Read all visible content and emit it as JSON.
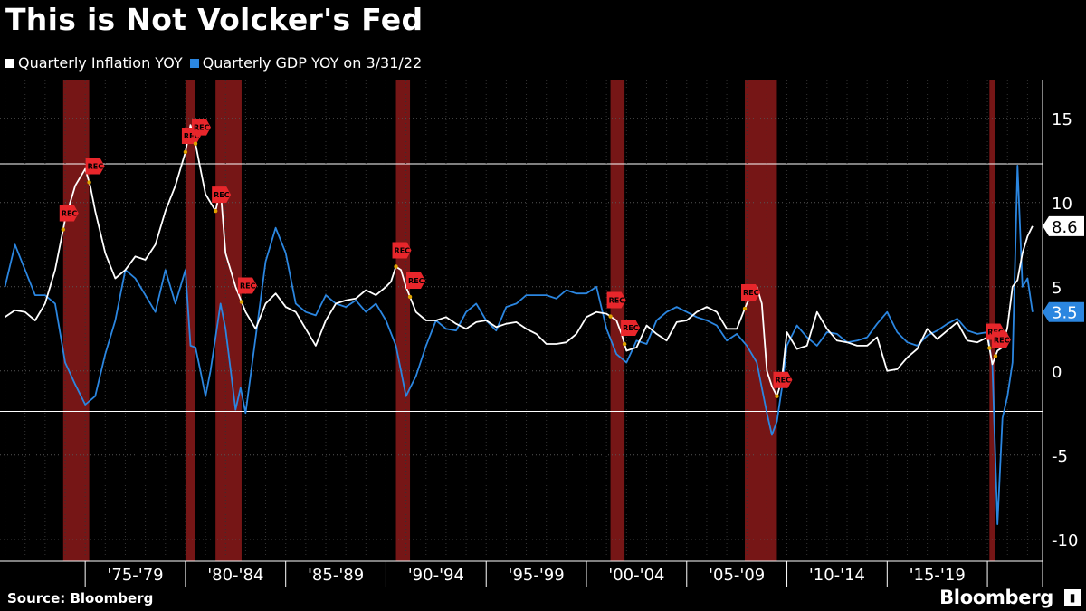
{
  "page": {
    "title": "This is Not Volcker's Fed",
    "source": "Source: Bloomberg",
    "brand": "Bloomberg",
    "brand_icon": "bloomberg-terminal-icon"
  },
  "colors": {
    "background": "#000000",
    "inflation": "#ffffff",
    "gdp": "#2b86e0",
    "recession": "#8b1a1a",
    "rec_flag": "#e8262b",
    "grid": "#555555",
    "marker": "#e0a400"
  },
  "chart_data": {
    "type": "line",
    "title": "This is Not Volcker's Fed",
    "xlabel": "",
    "ylabel": "",
    "ylim": [
      -11.3,
      17.3
    ],
    "xlim": [
      1970.75,
      2022.75
    ],
    "y_ticks": [
      15,
      10,
      5,
      0,
      -5,
      -10
    ],
    "x_period_labels": [
      "'75-'79",
      "'80-'84",
      "'85-'89",
      "'90-'94",
      "'95-'99",
      "'00-'04",
      "'05-'09",
      "'10-'14",
      "'15-'19"
    ],
    "reference_lines": [
      12.3,
      -2.4
    ],
    "last_value_labels": [
      {
        "series": "Quarterly Inflation YOY",
        "label": "8.6"
      },
      {
        "series": "Quarterly GDP YOY on 3/31/22",
        "label": "3.5"
      }
    ],
    "recession_label": "REC",
    "recessions": [
      [
        1973.9,
        1975.2
      ],
      [
        1980.0,
        1980.5
      ],
      [
        1981.5,
        1982.8
      ],
      [
        1990.5,
        1991.2
      ],
      [
        2001.2,
        2001.9
      ],
      [
        2007.9,
        2009.5
      ],
      [
        2020.1,
        2020.4
      ]
    ],
    "series": [
      {
        "name": "Quarterly Inflation YOY",
        "points": [
          [
            1971.0,
            3.2
          ],
          [
            1971.5,
            3.6
          ],
          [
            1972.0,
            3.5
          ],
          [
            1972.5,
            3.0
          ],
          [
            1973.0,
            4.0
          ],
          [
            1973.5,
            6.0
          ],
          [
            1974.0,
            9.0
          ],
          [
            1974.5,
            11.0
          ],
          [
            1975.0,
            12.0
          ],
          [
            1975.25,
            11.0
          ],
          [
            1975.5,
            9.5
          ],
          [
            1976.0,
            7.0
          ],
          [
            1976.5,
            5.5
          ],
          [
            1977.0,
            6.0
          ],
          [
            1977.5,
            6.8
          ],
          [
            1978.0,
            6.6
          ],
          [
            1978.5,
            7.5
          ],
          [
            1979.0,
            9.5
          ],
          [
            1979.5,
            11.0
          ],
          [
            1980.0,
            13.0
          ],
          [
            1980.25,
            14.6
          ],
          [
            1980.5,
            13.5
          ],
          [
            1980.75,
            12.0
          ],
          [
            1981.0,
            10.5
          ],
          [
            1981.5,
            9.5
          ],
          [
            1981.75,
            10.8
          ],
          [
            1982.0,
            7.0
          ],
          [
            1982.5,
            5.0
          ],
          [
            1983.0,
            3.5
          ],
          [
            1983.5,
            2.5
          ],
          [
            1984.0,
            4.0
          ],
          [
            1984.5,
            4.6
          ],
          [
            1985.0,
            3.8
          ],
          [
            1985.5,
            3.5
          ],
          [
            1986.0,
            2.5
          ],
          [
            1986.5,
            1.5
          ],
          [
            1987.0,
            3.0
          ],
          [
            1987.5,
            4.0
          ],
          [
            1988.0,
            4.2
          ],
          [
            1988.5,
            4.3
          ],
          [
            1989.0,
            4.8
          ],
          [
            1989.5,
            4.5
          ],
          [
            1990.0,
            5.0
          ],
          [
            1990.25,
            5.3
          ],
          [
            1990.5,
            6.2
          ],
          [
            1990.75,
            6.0
          ],
          [
            1991.0,
            5.0
          ],
          [
            1991.5,
            3.5
          ],
          [
            1992.0,
            3.0
          ],
          [
            1992.5,
            3.0
          ],
          [
            1993.0,
            3.2
          ],
          [
            1993.5,
            2.8
          ],
          [
            1994.0,
            2.5
          ],
          [
            1994.5,
            2.9
          ],
          [
            1995.0,
            3.0
          ],
          [
            1995.5,
            2.6
          ],
          [
            1996.0,
            2.8
          ],
          [
            1996.5,
            2.9
          ],
          [
            1997.0,
            2.5
          ],
          [
            1997.5,
            2.2
          ],
          [
            1998.0,
            1.6
          ],
          [
            1998.5,
            1.6
          ],
          [
            1999.0,
            1.7
          ],
          [
            1999.5,
            2.2
          ],
          [
            2000.0,
            3.2
          ],
          [
            2000.5,
            3.5
          ],
          [
            2001.0,
            3.4
          ],
          [
            2001.5,
            3.0
          ],
          [
            2001.75,
            2.2
          ],
          [
            2002.0,
            1.2
          ],
          [
            2002.5,
            1.4
          ],
          [
            2003.0,
            2.7
          ],
          [
            2003.5,
            2.2
          ],
          [
            2004.0,
            1.8
          ],
          [
            2004.5,
            2.9
          ],
          [
            2005.0,
            3.0
          ],
          [
            2005.5,
            3.5
          ],
          [
            2006.0,
            3.8
          ],
          [
            2006.5,
            3.5
          ],
          [
            2007.0,
            2.5
          ],
          [
            2007.5,
            2.5
          ],
          [
            2008.0,
            4.0
          ],
          [
            2008.5,
            5.0
          ],
          [
            2008.75,
            4.0
          ],
          [
            2009.0,
            0.0
          ],
          [
            2009.25,
            -0.9
          ],
          [
            2009.5,
            -1.5
          ],
          [
            2009.75,
            -0.5
          ],
          [
            2010.0,
            2.3
          ],
          [
            2010.5,
            1.3
          ],
          [
            2011.0,
            1.5
          ],
          [
            2011.5,
            3.5
          ],
          [
            2012.0,
            2.5
          ],
          [
            2012.5,
            1.8
          ],
          [
            2013.0,
            1.7
          ],
          [
            2013.5,
            1.5
          ],
          [
            2014.0,
            1.5
          ],
          [
            2014.5,
            2.0
          ],
          [
            2015.0,
            0.0
          ],
          [
            2015.5,
            0.1
          ],
          [
            2016.0,
            0.8
          ],
          [
            2016.5,
            1.3
          ],
          [
            2017.0,
            2.5
          ],
          [
            2017.5,
            1.9
          ],
          [
            2018.0,
            2.4
          ],
          [
            2018.5,
            2.9
          ],
          [
            2019.0,
            1.8
          ],
          [
            2019.5,
            1.7
          ],
          [
            2020.0,
            2.0
          ],
          [
            2020.25,
            0.4
          ],
          [
            2020.5,
            1.2
          ],
          [
            2020.75,
            1.4
          ],
          [
            2021.0,
            2.6
          ],
          [
            2021.25,
            5.0
          ],
          [
            2021.5,
            5.4
          ],
          [
            2021.75,
            7.0
          ],
          [
            2022.0,
            8.0
          ],
          [
            2022.25,
            8.6
          ]
        ]
      },
      {
        "name": "Quarterly GDP YOY on 3/31/22",
        "points": [
          [
            1971.0,
            5.0
          ],
          [
            1971.5,
            7.5
          ],
          [
            1972.0,
            6.0
          ],
          [
            1972.5,
            4.5
          ],
          [
            1973.0,
            4.5
          ],
          [
            1973.5,
            4.0
          ],
          [
            1974.0,
            0.5
          ],
          [
            1974.5,
            -0.8
          ],
          [
            1975.0,
            -2.0
          ],
          [
            1975.5,
            -1.5
          ],
          [
            1976.0,
            1.0
          ],
          [
            1976.5,
            3.0
          ],
          [
            1977.0,
            6.0
          ],
          [
            1977.5,
            5.5
          ],
          [
            1978.0,
            4.5
          ],
          [
            1978.5,
            3.5
          ],
          [
            1979.0,
            6.0
          ],
          [
            1979.5,
            4.0
          ],
          [
            1980.0,
            6.0
          ],
          [
            1980.25,
            1.5
          ],
          [
            1980.5,
            1.4
          ],
          [
            1980.75,
            0.0
          ],
          [
            1981.0,
            -1.5
          ],
          [
            1981.25,
            0.0
          ],
          [
            1981.5,
            2.0
          ],
          [
            1981.75,
            4.0
          ],
          [
            1982.0,
            2.5
          ],
          [
            1982.5,
            -2.3
          ],
          [
            1982.75,
            -1.0
          ],
          [
            1983.0,
            -2.5
          ],
          [
            1983.5,
            2.0
          ],
          [
            1984.0,
            6.5
          ],
          [
            1984.5,
            8.5
          ],
          [
            1985.0,
            7.0
          ],
          [
            1985.5,
            4.0
          ],
          [
            1986.0,
            3.5
          ],
          [
            1986.5,
            3.3
          ],
          [
            1987.0,
            4.5
          ],
          [
            1987.5,
            4.0
          ],
          [
            1988.0,
            3.8
          ],
          [
            1988.5,
            4.2
          ],
          [
            1989.0,
            3.5
          ],
          [
            1989.5,
            4.0
          ],
          [
            1990.0,
            3.0
          ],
          [
            1990.5,
            1.5
          ],
          [
            1990.75,
            0.0
          ],
          [
            1991.0,
            -1.5
          ],
          [
            1991.5,
            -0.3
          ],
          [
            1992.0,
            1.5
          ],
          [
            1992.5,
            3.0
          ],
          [
            1993.0,
            2.5
          ],
          [
            1993.5,
            2.4
          ],
          [
            1994.0,
            3.5
          ],
          [
            1994.5,
            4.0
          ],
          [
            1995.0,
            3.0
          ],
          [
            1995.5,
            2.4
          ],
          [
            1996.0,
            3.8
          ],
          [
            1996.5,
            4.0
          ],
          [
            1997.0,
            4.5
          ],
          [
            1997.5,
            4.5
          ],
          [
            1998.0,
            4.5
          ],
          [
            1998.5,
            4.3
          ],
          [
            1999.0,
            4.8
          ],
          [
            1999.5,
            4.6
          ],
          [
            2000.0,
            4.6
          ],
          [
            2000.5,
            5.0
          ],
          [
            2001.0,
            2.5
          ],
          [
            2001.5,
            1.0
          ],
          [
            2002.0,
            0.5
          ],
          [
            2002.5,
            1.8
          ],
          [
            2003.0,
            1.6
          ],
          [
            2003.5,
            3.0
          ],
          [
            2004.0,
            3.5
          ],
          [
            2004.5,
            3.8
          ],
          [
            2005.0,
            3.5
          ],
          [
            2005.5,
            3.2
          ],
          [
            2006.0,
            3.0
          ],
          [
            2006.5,
            2.7
          ],
          [
            2007.0,
            1.8
          ],
          [
            2007.5,
            2.2
          ],
          [
            2008.0,
            1.5
          ],
          [
            2008.5,
            0.5
          ],
          [
            2008.75,
            -1.0
          ],
          [
            2009.0,
            -2.5
          ],
          [
            2009.25,
            -3.8
          ],
          [
            2009.5,
            -3.0
          ],
          [
            2009.75,
            -1.0
          ],
          [
            2010.0,
            1.5
          ],
          [
            2010.5,
            2.7
          ],
          [
            2011.0,
            2.0
          ],
          [
            2011.5,
            1.5
          ],
          [
            2012.0,
            2.3
          ],
          [
            2012.5,
            2.2
          ],
          [
            2013.0,
            1.7
          ],
          [
            2013.5,
            1.8
          ],
          [
            2014.0,
            2.0
          ],
          [
            2014.5,
            2.8
          ],
          [
            2015.0,
            3.5
          ],
          [
            2015.5,
            2.3
          ],
          [
            2016.0,
            1.7
          ],
          [
            2016.5,
            1.5
          ],
          [
            2017.0,
            2.1
          ],
          [
            2017.5,
            2.4
          ],
          [
            2018.0,
            2.8
          ],
          [
            2018.5,
            3.1
          ],
          [
            2019.0,
            2.4
          ],
          [
            2019.5,
            2.2
          ],
          [
            2020.0,
            2.3
          ],
          [
            2020.25,
            0.3
          ],
          [
            2020.5,
            -9.1
          ],
          [
            2020.75,
            -2.8
          ],
          [
            2021.0,
            -1.5
          ],
          [
            2021.25,
            0.5
          ],
          [
            2021.5,
            12.2
          ],
          [
            2021.75,
            5.0
          ],
          [
            2022.0,
            5.5
          ],
          [
            2022.25,
            3.5
          ]
        ]
      }
    ]
  }
}
